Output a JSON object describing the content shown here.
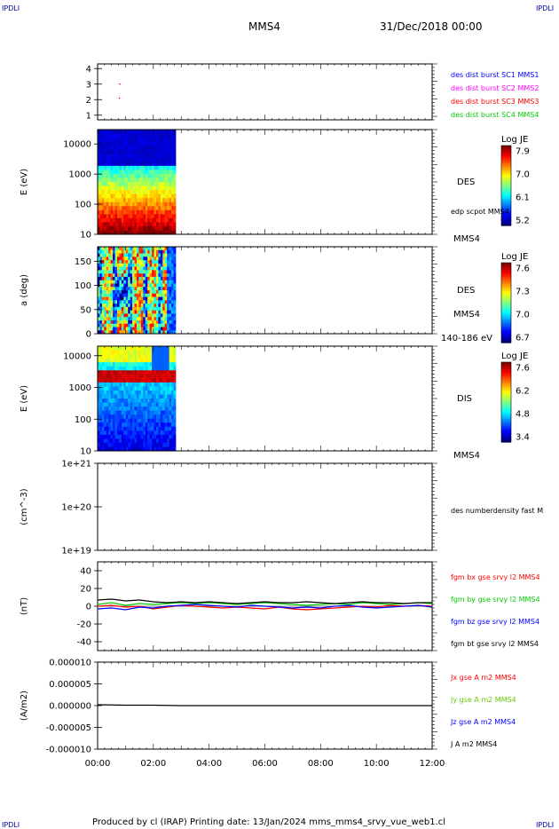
{
  "header": {
    "corner_tl": "IPDLI",
    "corner_tr": "IPDLI",
    "corner_bl": "IPDLI",
    "corner_br": "IPDLI",
    "spacecraft": "MMS4",
    "date": "31/Dec/2018 00:00"
  },
  "footer": {
    "text": "Produced by cl (IRAP)   Printing date: 13/Jan/2024   mms_mms4_srvy_vue_web1.cl"
  },
  "colors": {
    "blue": "#0000ff",
    "magenta": "#ff00ff",
    "red": "#ff0000",
    "green": "#00cc00",
    "light_green": "#66cc00",
    "black": "#000000",
    "header_blue": "#0000aa"
  },
  "chart_data": [
    {
      "type": "scatter",
      "id": "burst",
      "ylim": [
        0.7,
        4.3
      ],
      "yticks": [
        "1",
        "2",
        "3",
        "4"
      ],
      "ytick_values": [
        1,
        2,
        3,
        4
      ],
      "points": [
        {
          "x": 0.8,
          "y": 3.0
        },
        {
          "x": 0.78,
          "y": 2.1
        }
      ],
      "legend": [
        {
          "label": "des dist burst SC1 MMS1",
          "color": "#0000ff"
        },
        {
          "label": "des dist burst SC2 MMS2",
          "color": "#ff00ff"
        },
        {
          "label": "des dist burst SC3 MMS3",
          "color": "#ff0000"
        },
        {
          "label": "des dist burst SC4 MMS4",
          "color": "#00cc00"
        }
      ]
    },
    {
      "type": "heatmap",
      "id": "des-energy",
      "ylabel": "E (eV)",
      "yscale": "log",
      "ylim": [
        10,
        30000
      ],
      "yticks": [
        "10",
        "100",
        "1000",
        "10000"
      ],
      "ytick_values": [
        10,
        100,
        1000,
        10000
      ],
      "data_x_range": [
        0,
        2.8
      ],
      "side_labels": {
        "instrument": "DES",
        "line": "edp scpot MMS4",
        "sc": "MMS4"
      },
      "colorbar": {
        "title": "Log JE",
        "ticks": [
          "7.9",
          "7.0",
          "6.1",
          "5.2"
        ],
        "range": [
          5.2,
          7.9
        ]
      }
    },
    {
      "type": "heatmap",
      "id": "des-pitch",
      "ylabel": "a (deg)",
      "ylim": [
        0,
        180
      ],
      "yticks": [
        "0",
        "50",
        "100",
        "150"
      ],
      "ytick_values": [
        0,
        50,
        100,
        150
      ],
      "data_x_range": [
        0,
        2.8
      ],
      "side_labels": {
        "instrument": "DES",
        "sc": "MMS4",
        "range": "140-186 eV"
      },
      "colorbar": {
        "title": "Log JE",
        "ticks": [
          "7.6",
          "7.3",
          "7.0",
          "6.7"
        ],
        "range": [
          6.7,
          7.6
        ]
      }
    },
    {
      "type": "heatmap",
      "id": "dis-energy",
      "ylabel": "E (eV)",
      "yscale": "log",
      "ylim": [
        10,
        20000
      ],
      "yticks": [
        "10",
        "100",
        "1000",
        "10000"
      ],
      "ytick_values": [
        10,
        100,
        1000,
        10000
      ],
      "data_x_range": [
        0,
        2.8
      ],
      "side_labels": {
        "instrument": "DIS",
        "sc": "MMS4"
      },
      "colorbar": {
        "title": "Log JE",
        "ticks": [
          "7.6",
          "6.2",
          "4.8",
          "3.4"
        ],
        "range": [
          3.4,
          7.6
        ]
      }
    },
    {
      "type": "line",
      "id": "density",
      "ylabel": "(cm^-3)",
      "yscale": "log",
      "ylim": [
        1e+19,
        1e+21
      ],
      "yticks": [
        "1e+19",
        "1e+20",
        "1e+21"
      ],
      "ytick_values": [
        19,
        20,
        21
      ],
      "legend": [
        {
          "label": "des numberdensity fast M",
          "color": "#000000"
        }
      ]
    },
    {
      "type": "line",
      "id": "fgm",
      "ylabel": "(nT)",
      "ylim": [
        -50,
        50
      ],
      "yticks": [
        "-40",
        "-20",
        "0",
        "20",
        "40"
      ],
      "ytick_values": [
        -40,
        -20,
        0,
        20,
        40
      ],
      "series": [
        {
          "name": "fgm bx gse srvy l2 MMS4",
          "color": "#ff0000",
          "x": [
            0,
            0.5,
            1,
            1.5,
            2,
            2.5,
            3,
            3.5,
            4,
            4.5,
            5,
            5.5,
            6,
            6.5,
            7,
            7.5,
            8,
            8.5,
            9,
            9.5,
            10,
            10.5,
            11,
            11.5,
            12
          ],
          "values": [
            0,
            1,
            -1,
            0,
            -3,
            -1,
            1,
            0,
            -1,
            -2,
            -1,
            -2,
            -3,
            -1,
            -3,
            -4,
            -3,
            -2,
            -1,
            0,
            -1,
            1,
            0,
            1,
            0
          ]
        },
        {
          "name": "fgm by gse srvy l2 MMS4",
          "color": "#00cc00",
          "x": [
            0,
            0.5,
            1,
            1.5,
            2,
            2.5,
            3,
            3.5,
            4,
            4.5,
            5,
            5.5,
            6,
            6.5,
            7,
            7.5,
            8,
            8.5,
            9,
            9.5,
            10,
            10.5,
            11,
            11.5,
            12
          ],
          "values": [
            2,
            4,
            1,
            3,
            2,
            3,
            4,
            3,
            4,
            3,
            2,
            3,
            4,
            3,
            2,
            1,
            2,
            3,
            2,
            4,
            3,
            2,
            3,
            4,
            3
          ]
        },
        {
          "name": "fgm bz gse srvy l2 MMS4",
          "color": "#0000ff",
          "x": [
            0,
            0.5,
            1,
            1.5,
            2,
            2.5,
            3,
            3.5,
            4,
            4.5,
            5,
            5.5,
            6,
            6.5,
            7,
            7.5,
            8,
            8.5,
            9,
            9.5,
            10,
            10.5,
            11,
            11.5,
            12
          ],
          "values": [
            -3,
            -2,
            -4,
            -1,
            -2,
            0,
            1,
            2,
            1,
            0,
            -1,
            1,
            0,
            -1,
            -2,
            -1,
            -2,
            0,
            1,
            -1,
            -2,
            -1,
            0,
            1,
            -1
          ]
        },
        {
          "name": "fgm bt gse srvy l2 MMS4",
          "color": "#000000",
          "x": [
            0,
            0.5,
            1,
            1.5,
            2,
            2.5,
            3,
            3.5,
            4,
            4.5,
            5,
            5.5,
            6,
            6.5,
            7,
            7.5,
            8,
            8.5,
            9,
            9.5,
            10,
            10.5,
            11,
            11.5,
            12
          ],
          "values": [
            7,
            8,
            6,
            7,
            5,
            4,
            5,
            4,
            5,
            4,
            3,
            4,
            5,
            4,
            4,
            5,
            4,
            3,
            4,
            5,
            4,
            4,
            3,
            4,
            4
          ]
        }
      ]
    },
    {
      "type": "line",
      "id": "current",
      "ylabel": "(A/m2)",
      "ylim": [
        -1e-05,
        1e-05
      ],
      "yticks": [
        "-0.000010",
        "-0.000005",
        "0.000000",
        "0.000005",
        "0.000010"
      ],
      "ytick_values": [
        -1e-05,
        -5e-06,
        0,
        5e-06,
        1e-05
      ],
      "x": [
        0,
        1,
        2,
        3,
        4,
        5,
        6,
        7,
        8,
        9,
        10,
        11,
        12
      ],
      "values": [
        2e-07,
        1e-07,
        1e-07,
        0,
        0,
        0,
        0,
        0,
        0,
        0,
        0,
        0,
        0
      ],
      "legend": [
        {
          "label": "Jx gse A m2 MMS4",
          "color": "#ff0000"
        },
        {
          "label": "Jy gse A m2 MMS4",
          "color": "#66cc00"
        },
        {
          "label": "Jz gse A m2 MMS4",
          "color": "#0000ff"
        },
        {
          "label": "J A m2 MMS4",
          "color": "#000000"
        }
      ]
    }
  ],
  "xaxis": {
    "ticks": [
      "00:00",
      "02:00",
      "04:00",
      "06:00",
      "08:00",
      "10:00",
      "12:00"
    ],
    "tick_values": [
      0,
      2,
      4,
      6,
      8,
      10,
      12
    ],
    "xlim": [
      0,
      12
    ]
  }
}
